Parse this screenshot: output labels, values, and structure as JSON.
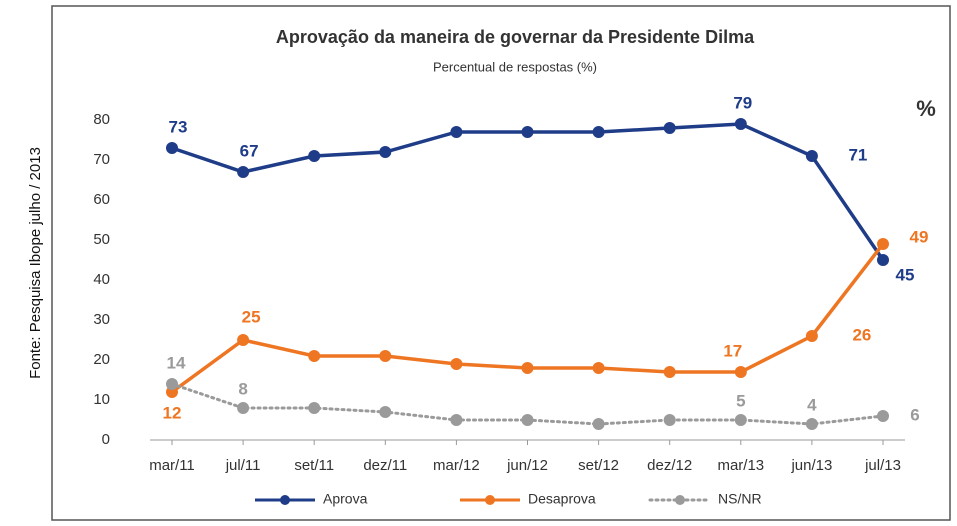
{
  "chart_data": {
    "type": "line",
    "title": "Aprovação da maneira de governar da Presidente Dilma",
    "subtitle": "Percentual de respostas (%)",
    "unit_label": "%",
    "source": "Fonte: Pesquisa Ibope julho / 2013",
    "categories": [
      "mar/11",
      "jul/11",
      "set/11",
      "dez/11",
      "mar/12",
      "jun/12",
      "set/12",
      "dez/12",
      "mar/13",
      "jun/13",
      "jul/13"
    ],
    "series": [
      {
        "name": "Aprova",
        "color": "#1f3c88",
        "style": "solid",
        "values": [
          73,
          67,
          71,
          72,
          77,
          77,
          77,
          78,
          79,
          71,
          45
        ],
        "value_labels": [
          73,
          67,
          null,
          null,
          null,
          null,
          null,
          null,
          79,
          71,
          45
        ]
      },
      {
        "name": "Desaprova",
        "color": "#ee7623",
        "style": "solid",
        "values": [
          12,
          25,
          21,
          21,
          19,
          18,
          18,
          17,
          17,
          26,
          49
        ],
        "value_labels": [
          12,
          25,
          null,
          null,
          null,
          null,
          null,
          null,
          17,
          26,
          49
        ]
      },
      {
        "name": "NS/NR",
        "color": "#9a9a9a",
        "style": "dotted",
        "values": [
          14,
          8,
          8,
          7,
          5,
          5,
          4,
          5,
          5,
          4,
          6
        ],
        "value_labels": [
          14,
          8,
          null,
          null,
          null,
          null,
          null,
          null,
          5,
          4,
          6
        ]
      }
    ],
    "ylim": [
      0,
      80
    ],
    "yticks": [
      0,
      10,
      20,
      30,
      40,
      50,
      60,
      70,
      80
    ],
    "grid": false,
    "legend": "bottom"
  }
}
